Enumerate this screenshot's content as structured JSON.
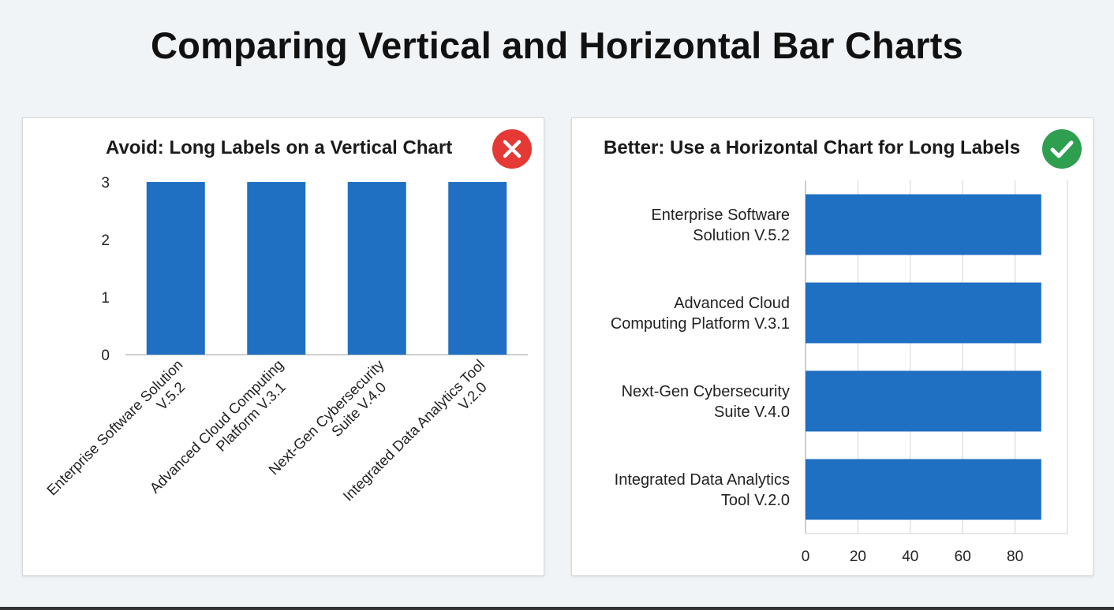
{
  "title": "Comparing Vertical and Horizontal Bar Charts",
  "panels": {
    "left": {
      "title": "Avoid: Long Labels on a Vertical Chart",
      "badge_icon": "x-mark-icon",
      "badge_color": "#e53935"
    },
    "right": {
      "title": "Better: Use a Horizontal Chart for Long Labels",
      "badge_icon": "check-mark-icon",
      "badge_color": "#2e9e4f"
    }
  },
  "colors": {
    "bar": "#1f6fc2",
    "grid": "#d9d9d9",
    "axis": "#bdbdbd"
  },
  "chart_data": [
    {
      "type": "bar",
      "orientation": "vertical",
      "title": "Avoid: Long Labels on a Vertical Chart",
      "categories": [
        [
          "Enterprise Software Solution",
          "V.5.2"
        ],
        [
          "Advanced Cloud Computing",
          "Platform V.3.1"
        ],
        [
          "Next-Gen Cybersecurity",
          "Suite V.4.0"
        ],
        [
          "Integrated Data Analytics Tool",
          "V.2.0"
        ]
      ],
      "values": [
        3,
        3,
        3,
        3
      ],
      "ylim": [
        0,
        3
      ],
      "yticks": [
        0,
        1,
        2,
        3
      ],
      "grid": false,
      "xlabel": "",
      "ylabel": ""
    },
    {
      "type": "bar",
      "orientation": "horizontal",
      "title": "Better: Use a Horizontal Chart for Long Labels",
      "categories": [
        [
          "Enterprise Software",
          "Solution V.5.2"
        ],
        [
          "Advanced Cloud",
          "Computing Platform V.3.1"
        ],
        [
          "Next-Gen Cybersecurity",
          "Suite V.4.0"
        ],
        [
          "Integrated Data Analytics",
          "Tool V.2.0"
        ]
      ],
      "values": [
        90,
        90,
        90,
        90
      ],
      "xlim": [
        0,
        100
      ],
      "xticks": [
        0,
        20,
        40,
        60,
        80
      ],
      "grid": true,
      "xlabel": "",
      "ylabel": ""
    }
  ]
}
